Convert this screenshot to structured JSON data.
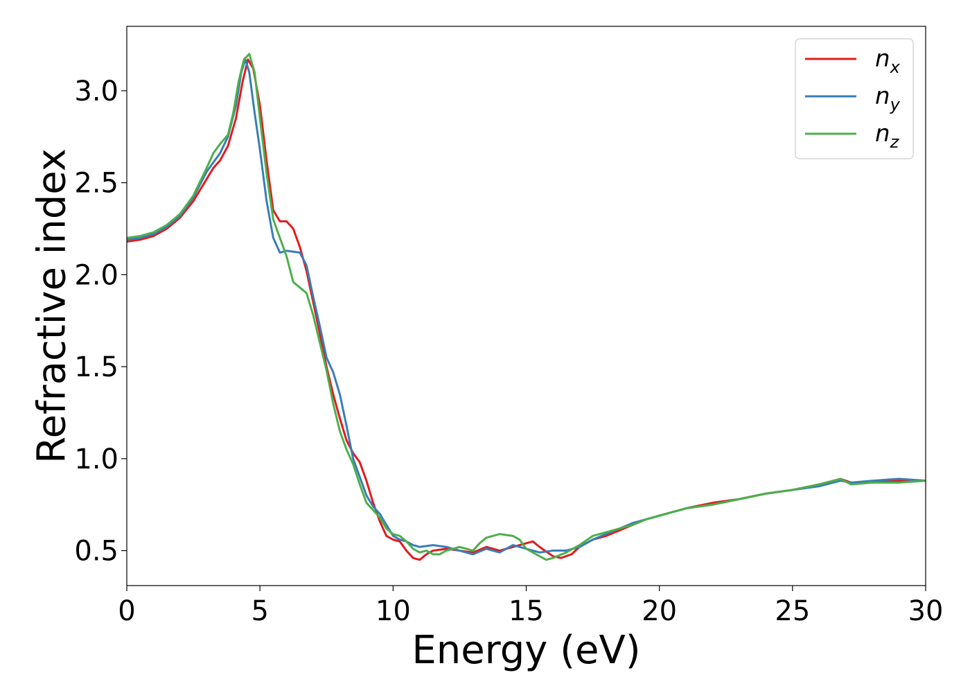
{
  "chart_data": {
    "type": "line",
    "title": "",
    "xlabel": "Energy (eV)",
    "ylabel": "Refractive index",
    "xlim": [
      0,
      30
    ],
    "ylim": [
      0.31,
      3.35
    ],
    "xticks": [
      0,
      5,
      10,
      15,
      20,
      25,
      30
    ],
    "xtick_labels": [
      "0",
      "5",
      "10",
      "15",
      "20",
      "25",
      "30"
    ],
    "yticks": [
      0.5,
      1.0,
      1.5,
      2.0,
      2.5,
      3.0
    ],
    "ytick_labels": [
      "0.5",
      "1.0",
      "1.5",
      "2.0",
      "2.5",
      "3.0"
    ],
    "grid": false,
    "legend_position": "top-right",
    "series": [
      {
        "name": "n",
        "subscript": "x",
        "color": "#e41a1c",
        "points": [
          [
            0,
            2.18
          ],
          [
            0.5,
            2.19
          ],
          [
            1,
            2.21
          ],
          [
            1.5,
            2.25
          ],
          [
            2,
            2.31
          ],
          [
            2.5,
            2.4
          ],
          [
            3,
            2.52
          ],
          [
            3.25,
            2.58
          ],
          [
            3.5,
            2.62
          ],
          [
            3.8,
            2.7
          ],
          [
            4.1,
            2.85
          ],
          [
            4.35,
            3.05
          ],
          [
            4.55,
            3.17
          ],
          [
            4.75,
            3.12
          ],
          [
            5.0,
            2.92
          ],
          [
            5.25,
            2.62
          ],
          [
            5.5,
            2.35
          ],
          [
            5.75,
            2.29
          ],
          [
            6.0,
            2.29
          ],
          [
            6.25,
            2.25
          ],
          [
            6.5,
            2.15
          ],
          [
            6.75,
            2.02
          ],
          [
            7.0,
            1.85
          ],
          [
            7.25,
            1.68
          ],
          [
            7.5,
            1.5
          ],
          [
            7.75,
            1.35
          ],
          [
            8.0,
            1.22
          ],
          [
            8.25,
            1.1
          ],
          [
            8.5,
            1.03
          ],
          [
            8.75,
            0.98
          ],
          [
            9.0,
            0.88
          ],
          [
            9.25,
            0.76
          ],
          [
            9.5,
            0.66
          ],
          [
            9.75,
            0.58
          ],
          [
            10.0,
            0.56
          ],
          [
            10.25,
            0.55
          ],
          [
            10.5,
            0.5
          ],
          [
            10.75,
            0.46
          ],
          [
            11.0,
            0.45
          ],
          [
            11.25,
            0.48
          ],
          [
            11.5,
            0.5
          ],
          [
            12.0,
            0.51
          ],
          [
            12.5,
            0.5
          ],
          [
            13.0,
            0.49
          ],
          [
            13.5,
            0.52
          ],
          [
            14.0,
            0.5
          ],
          [
            14.5,
            0.52
          ],
          [
            15.0,
            0.54
          ],
          [
            15.25,
            0.55
          ],
          [
            15.5,
            0.52
          ],
          [
            16.0,
            0.47
          ],
          [
            16.3,
            0.46
          ],
          [
            16.7,
            0.48
          ],
          [
            17.0,
            0.52
          ],
          [
            17.5,
            0.56
          ],
          [
            18.0,
            0.58
          ],
          [
            18.5,
            0.61
          ],
          [
            19.0,
            0.64
          ],
          [
            19.5,
            0.67
          ],
          [
            20.0,
            0.69
          ],
          [
            20.5,
            0.71
          ],
          [
            21.0,
            0.73
          ],
          [
            22.0,
            0.76
          ],
          [
            23.0,
            0.78
          ],
          [
            24.0,
            0.81
          ],
          [
            25.0,
            0.83
          ],
          [
            26.0,
            0.86
          ],
          [
            26.8,
            0.89
          ],
          [
            27.2,
            0.87
          ],
          [
            28.0,
            0.87
          ],
          [
            29.0,
            0.88
          ],
          [
            30.0,
            0.88
          ]
        ]
      },
      {
        "name": "n",
        "subscript": "y",
        "color": "#377eb8",
        "points": [
          [
            0,
            2.19
          ],
          [
            0.5,
            2.2
          ],
          [
            1,
            2.22
          ],
          [
            1.5,
            2.26
          ],
          [
            2,
            2.32
          ],
          [
            2.5,
            2.42
          ],
          [
            3,
            2.56
          ],
          [
            3.5,
            2.66
          ],
          [
            3.8,
            2.75
          ],
          [
            4.1,
            2.92
          ],
          [
            4.3,
            3.1
          ],
          [
            4.45,
            3.17
          ],
          [
            4.6,
            3.1
          ],
          [
            4.8,
            2.88
          ],
          [
            5.0,
            2.68
          ],
          [
            5.25,
            2.4
          ],
          [
            5.5,
            2.2
          ],
          [
            5.75,
            2.12
          ],
          [
            6.0,
            2.13
          ],
          [
            6.5,
            2.12
          ],
          [
            6.75,
            2.05
          ],
          [
            7.0,
            1.88
          ],
          [
            7.25,
            1.72
          ],
          [
            7.5,
            1.55
          ],
          [
            7.75,
            1.47
          ],
          [
            8.0,
            1.35
          ],
          [
            8.25,
            1.18
          ],
          [
            8.5,
            1.0
          ],
          [
            8.75,
            0.9
          ],
          [
            9.0,
            0.8
          ],
          [
            9.25,
            0.74
          ],
          [
            9.5,
            0.7
          ],
          [
            9.75,
            0.64
          ],
          [
            10.0,
            0.58
          ],
          [
            10.25,
            0.56
          ],
          [
            10.5,
            0.55
          ],
          [
            10.75,
            0.53
          ],
          [
            11.0,
            0.52
          ],
          [
            11.5,
            0.53
          ],
          [
            12.0,
            0.52
          ],
          [
            12.5,
            0.5
          ],
          [
            13.0,
            0.48
          ],
          [
            13.5,
            0.51
          ],
          [
            14.0,
            0.49
          ],
          [
            14.5,
            0.53
          ],
          [
            15.0,
            0.51
          ],
          [
            15.5,
            0.49
          ],
          [
            16.0,
            0.5
          ],
          [
            16.5,
            0.5
          ],
          [
            17.0,
            0.52
          ],
          [
            17.5,
            0.56
          ],
          [
            18.0,
            0.59
          ],
          [
            18.5,
            0.62
          ],
          [
            19.0,
            0.65
          ],
          [
            19.5,
            0.67
          ],
          [
            20.0,
            0.69
          ],
          [
            21.0,
            0.73
          ],
          [
            22.0,
            0.75
          ],
          [
            23.0,
            0.78
          ],
          [
            24.0,
            0.81
          ],
          [
            25.0,
            0.83
          ],
          [
            26.0,
            0.85
          ],
          [
            26.8,
            0.88
          ],
          [
            27.2,
            0.87
          ],
          [
            28.0,
            0.88
          ],
          [
            29.0,
            0.89
          ],
          [
            30.0,
            0.88
          ]
        ]
      },
      {
        "name": "n",
        "subscript": "z",
        "color": "#4daf4a",
        "points": [
          [
            0,
            2.2
          ],
          [
            0.5,
            2.21
          ],
          [
            1,
            2.23
          ],
          [
            1.5,
            2.27
          ],
          [
            2,
            2.33
          ],
          [
            2.5,
            2.43
          ],
          [
            3,
            2.58
          ],
          [
            3.25,
            2.66
          ],
          [
            3.5,
            2.71
          ],
          [
            3.8,
            2.76
          ],
          [
            4.0,
            2.88
          ],
          [
            4.2,
            3.05
          ],
          [
            4.4,
            3.17
          ],
          [
            4.6,
            3.2
          ],
          [
            4.8,
            3.1
          ],
          [
            5.0,
            2.85
          ],
          [
            5.25,
            2.55
          ],
          [
            5.5,
            2.3
          ],
          [
            5.75,
            2.2
          ],
          [
            6.0,
            2.1
          ],
          [
            6.25,
            1.96
          ],
          [
            6.5,
            1.93
          ],
          [
            6.75,
            1.9
          ],
          [
            7.0,
            1.78
          ],
          [
            7.25,
            1.63
          ],
          [
            7.5,
            1.48
          ],
          [
            7.75,
            1.3
          ],
          [
            8.0,
            1.15
          ],
          [
            8.25,
            1.05
          ],
          [
            8.5,
            0.97
          ],
          [
            8.75,
            0.86
          ],
          [
            9.0,
            0.76
          ],
          [
            9.25,
            0.72
          ],
          [
            9.5,
            0.68
          ],
          [
            9.75,
            0.62
          ],
          [
            10.0,
            0.59
          ],
          [
            10.25,
            0.58
          ],
          [
            10.5,
            0.55
          ],
          [
            10.75,
            0.51
          ],
          [
            11.0,
            0.49
          ],
          [
            11.25,
            0.5
          ],
          [
            11.5,
            0.48
          ],
          [
            11.75,
            0.48
          ],
          [
            12.0,
            0.5
          ],
          [
            12.5,
            0.52
          ],
          [
            13.0,
            0.5
          ],
          [
            13.25,
            0.54
          ],
          [
            13.5,
            0.57
          ],
          [
            14.0,
            0.59
          ],
          [
            14.5,
            0.58
          ],
          [
            14.75,
            0.56
          ],
          [
            15.0,
            0.51
          ],
          [
            15.5,
            0.47
          ],
          [
            15.75,
            0.45
          ],
          [
            16.0,
            0.46
          ],
          [
            16.5,
            0.49
          ],
          [
            17.0,
            0.53
          ],
          [
            17.5,
            0.58
          ],
          [
            18.0,
            0.6
          ],
          [
            18.5,
            0.62
          ],
          [
            19.0,
            0.64
          ],
          [
            19.5,
            0.67
          ],
          [
            20.0,
            0.69
          ],
          [
            21.0,
            0.73
          ],
          [
            22.0,
            0.75
          ],
          [
            23.0,
            0.78
          ],
          [
            24.0,
            0.81
          ],
          [
            25.0,
            0.83
          ],
          [
            26.0,
            0.86
          ],
          [
            26.8,
            0.89
          ],
          [
            27.2,
            0.86
          ],
          [
            28.0,
            0.87
          ],
          [
            29.0,
            0.87
          ],
          [
            30.0,
            0.88
          ]
        ]
      }
    ]
  }
}
